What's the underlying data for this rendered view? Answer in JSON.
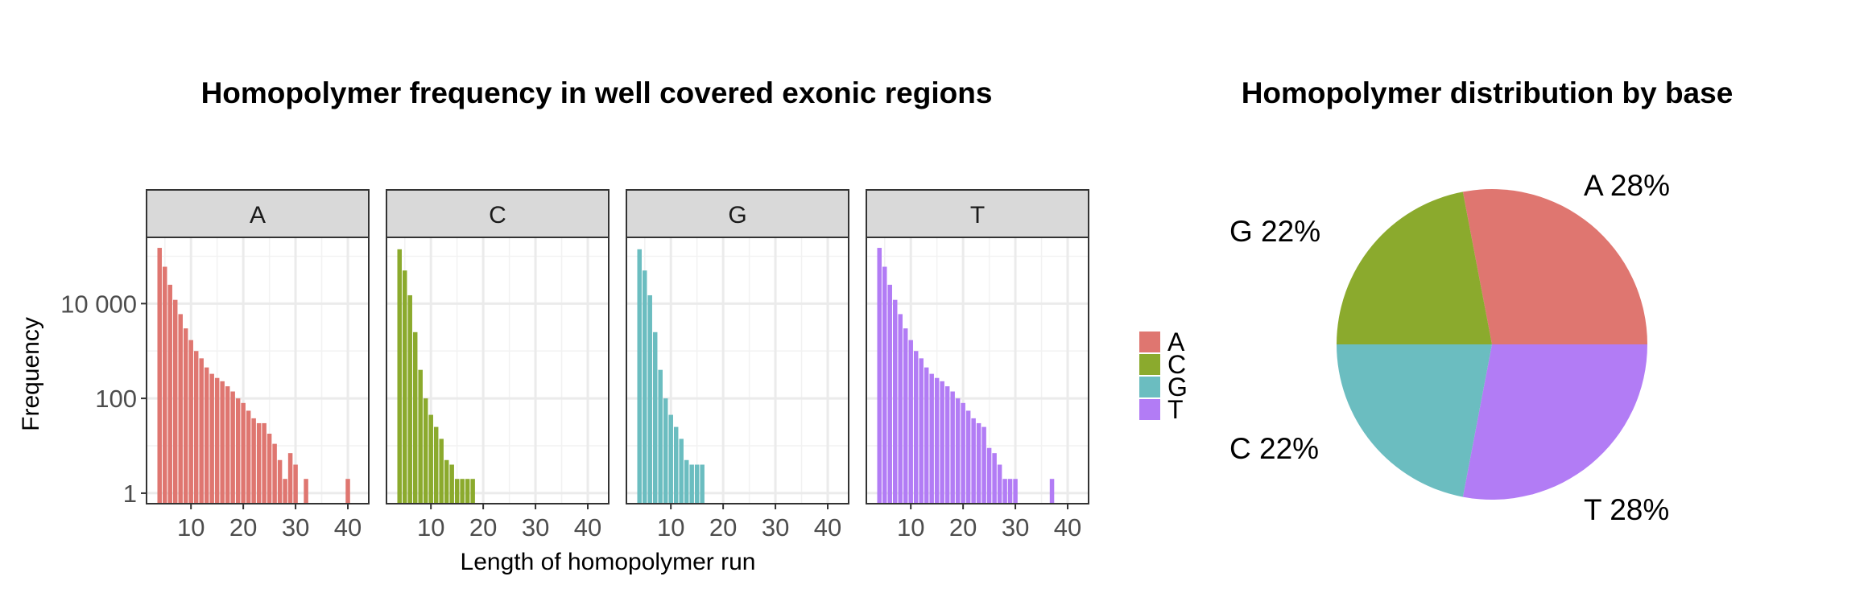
{
  "chart_data": [
    {
      "type": "bar",
      "title": "Homopolymer frequency in well covered exonic regions",
      "xlabel": "Length of homopolymer run",
      "ylabel": "Frequency",
      "y_scale": "log10",
      "ylim": [
        0.6,
        250000
      ],
      "xlim": [
        1.5,
        44
      ],
      "x_ticks": [
        10,
        20,
        30,
        40
      ],
      "x_tick_labels": [
        "10",
        "20",
        "30",
        "40"
      ],
      "y_ticks": [
        1,
        100,
        10000
      ],
      "y_tick_labels": [
        "1",
        "100",
        "10 000"
      ],
      "grid": true,
      "legend_position": "right",
      "legend": [
        {
          "label": "A",
          "color": "#DF7670"
        },
        {
          "label": "C",
          "color": "#8BAA2D"
        },
        {
          "label": "G",
          "color": "#6BBDC0"
        },
        {
          "label": "T",
          "color": "#B27CF5"
        }
      ],
      "facets": [
        {
          "label": "A",
          "color": "#DF7670",
          "x": [
            4,
            5,
            6,
            7,
            8,
            9,
            10,
            11,
            12,
            13,
            14,
            15,
            16,
            17,
            18,
            19,
            20,
            21,
            22,
            23,
            24,
            25,
            26,
            27,
            28,
            29,
            30,
            32,
            40
          ],
          "y": [
            150000,
            60000,
            25000,
            12000,
            6000,
            3000,
            1700,
            1000,
            700,
            450,
            330,
            270,
            230,
            180,
            140,
            100,
            80,
            55,
            38,
            30,
            30,
            18,
            11,
            5,
            2,
            7,
            4,
            2,
            2
          ]
        },
        {
          "label": "C",
          "color": "#8BAA2D",
          "x": [
            4,
            5,
            6,
            7,
            8,
            9,
            10,
            11,
            12,
            13,
            14,
            15,
            16,
            17,
            18
          ],
          "y": [
            140000,
            50000,
            15000,
            2500,
            400,
            100,
            45,
            25,
            14,
            5,
            4,
            2,
            2,
            2,
            2
          ]
        },
        {
          "label": "G",
          "color": "#6BBDC0",
          "x": [
            4,
            5,
            6,
            7,
            8,
            9,
            10,
            11,
            12,
            13,
            14,
            15,
            16
          ],
          "y": [
            140000,
            50000,
            15000,
            2500,
            400,
            100,
            45,
            25,
            14,
            5,
            4,
            4,
            4
          ]
        },
        {
          "label": "T",
          "color": "#B27CF5",
          "x": [
            4,
            5,
            6,
            7,
            8,
            9,
            10,
            11,
            12,
            13,
            14,
            15,
            16,
            17,
            18,
            19,
            20,
            21,
            22,
            23,
            24,
            25,
            26,
            27,
            28,
            29,
            30,
            37
          ],
          "y": [
            150000,
            60000,
            25000,
            12000,
            6000,
            3000,
            1700,
            1000,
            700,
            450,
            330,
            270,
            230,
            180,
            140,
            100,
            80,
            55,
            38,
            30,
            25,
            9,
            7,
            4,
            2,
            2,
            2,
            2
          ]
        }
      ]
    },
    {
      "type": "pie",
      "title": "Homopolymer distribution by base",
      "slices": [
        {
          "label": "A 28%",
          "category": "A",
          "value": 28,
          "color": "#DF7670"
        },
        {
          "label": "T 28%",
          "category": "T",
          "value": 28,
          "color": "#B27CF5"
        },
        {
          "label": "C 22%",
          "category": "C",
          "value": 22,
          "color": "#6BBDC0"
        },
        {
          "label": "G 22%",
          "category": "G",
          "value": 22,
          "color": "#8BAA2D"
        }
      ]
    }
  ]
}
